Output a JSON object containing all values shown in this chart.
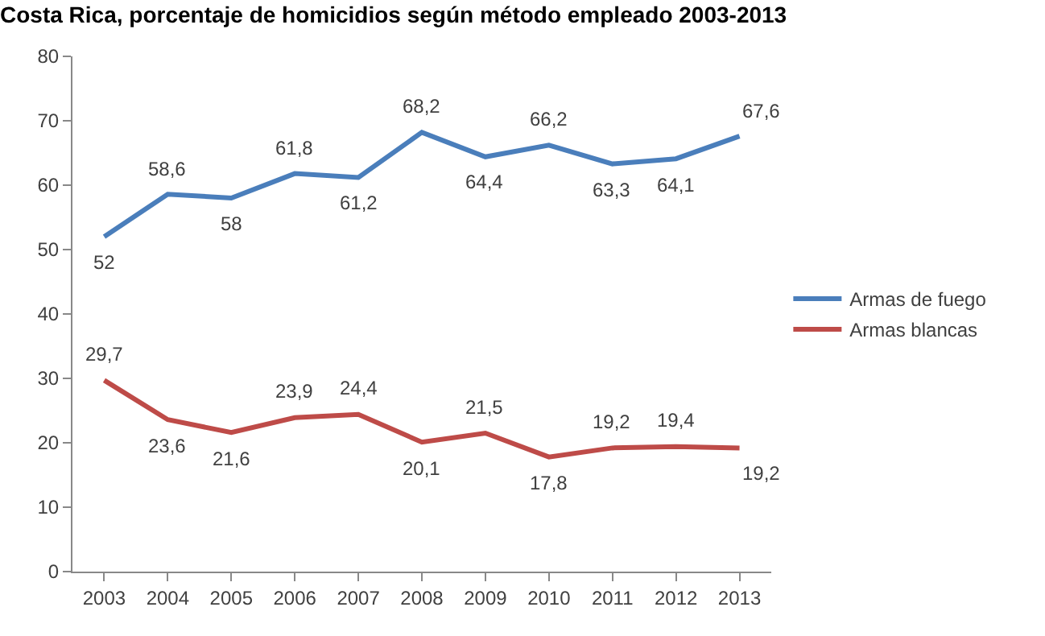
{
  "chart_data": {
    "type": "line",
    "title": "Costa Rica, porcentaje de homicidios según método empleado 2003-2013",
    "categories": [
      "2003",
      "2004",
      "2005",
      "2006",
      "2007",
      "2008",
      "2009",
      "2010",
      "2011",
      "2012",
      "2013"
    ],
    "series": [
      {
        "name": "Armas de fuego",
        "color": "#4a7ebb",
        "values": [
          52,
          58.6,
          58,
          61.8,
          61.2,
          68.2,
          64.4,
          66.2,
          63.3,
          64.1,
          67.6
        ],
        "value_labels": [
          "52",
          "58,6",
          "58",
          "61,8",
          "61,2",
          "68,2",
          "64,4",
          "66,2",
          "63,3",
          "64,1",
          "67,6"
        ]
      },
      {
        "name": "Armas blancas",
        "color": "#be4b48",
        "values": [
          29.7,
          23.6,
          21.6,
          23.9,
          24.4,
          20.1,
          21.5,
          17.8,
          19.2,
          19.4,
          19.2
        ],
        "value_labels": [
          "29,7",
          "23,6",
          "21,6",
          "23,9",
          "24,4",
          "20,1",
          "21,5",
          "17,8",
          "19,2",
          "19,4",
          "19,2"
        ]
      }
    ],
    "ylim": [
      0,
      80
    ],
    "yticks": [
      0,
      10,
      20,
      30,
      40,
      50,
      60,
      70,
      80
    ],
    "legend": "right",
    "marker": "none",
    "line_style": "solid"
  }
}
